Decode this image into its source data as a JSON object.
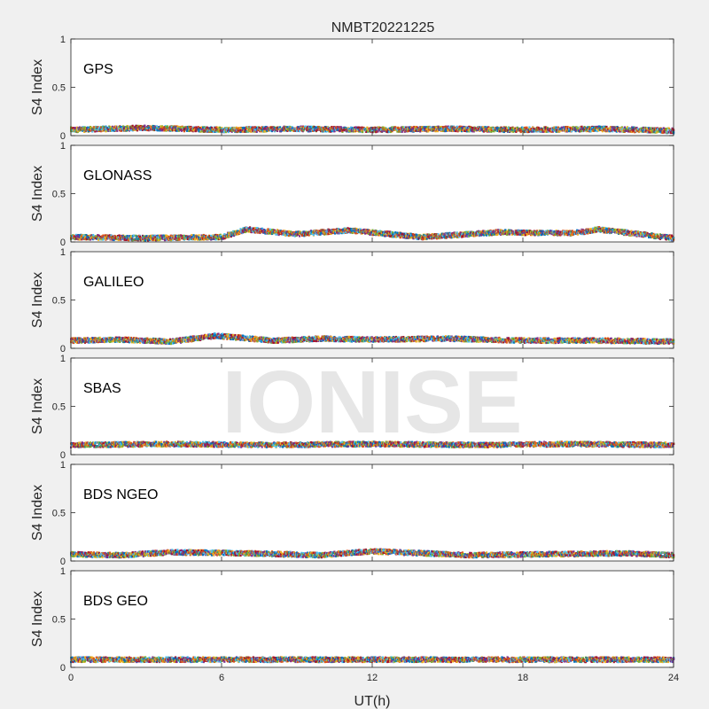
{
  "chart_data": {
    "type": "scatter",
    "title": "NMBT20221225",
    "xlabel": "UT(h)",
    "ylabel": "S4 Index",
    "xlim": [
      0,
      24
    ],
    "ylim": [
      0,
      1
    ],
    "xticks": [
      "0",
      "6",
      "12",
      "18",
      "24"
    ],
    "yticks": [
      "0",
      "0.5",
      "1"
    ],
    "watermark": "IONISE",
    "series_colors": [
      "#0072BD",
      "#D95319",
      "#EDB120",
      "#7E2F8E",
      "#77AC30",
      "#4DBEEE",
      "#A2142F"
    ],
    "panels": [
      {
        "label": "GPS",
        "level_envelope": {
          "x": [
            0,
            3,
            6,
            9,
            12,
            15,
            18,
            21,
            24
          ],
          "y": [
            0.06,
            0.08,
            0.06,
            0.07,
            0.06,
            0.07,
            0.06,
            0.07,
            0.05
          ]
        }
      },
      {
        "label": "GLONASS",
        "level_envelope": {
          "x": [
            0,
            3,
            6,
            7,
            9,
            11,
            14,
            17,
            20,
            21,
            24
          ],
          "y": [
            0.05,
            0.04,
            0.05,
            0.13,
            0.08,
            0.12,
            0.05,
            0.1,
            0.09,
            0.13,
            0.04
          ]
        }
      },
      {
        "label": "GALILEO",
        "level_envelope": {
          "x": [
            0,
            2,
            4,
            5.8,
            8,
            10,
            12,
            15,
            18,
            21,
            24
          ],
          "y": [
            0.08,
            0.09,
            0.07,
            0.13,
            0.08,
            0.1,
            0.09,
            0.1,
            0.08,
            0.08,
            0.07
          ]
        }
      },
      {
        "label": "SBAS",
        "level_envelope": {
          "x": [
            0,
            4,
            8,
            12,
            16,
            20,
            24
          ],
          "y": [
            0.1,
            0.11,
            0.1,
            0.11,
            0.1,
            0.11,
            0.1
          ]
        }
      },
      {
        "label": "BDS NGEO",
        "level_envelope": {
          "x": [
            0,
            2,
            4,
            7,
            10,
            12,
            16,
            19,
            22,
            24
          ],
          "y": [
            0.07,
            0.06,
            0.09,
            0.08,
            0.06,
            0.1,
            0.06,
            0.07,
            0.08,
            0.06
          ]
        }
      },
      {
        "label": "BDS GEO",
        "level_envelope": {
          "x": [
            0,
            6,
            12,
            18,
            24
          ],
          "y": [
            0.08,
            0.08,
            0.08,
            0.08,
            0.08
          ]
        }
      }
    ]
  }
}
